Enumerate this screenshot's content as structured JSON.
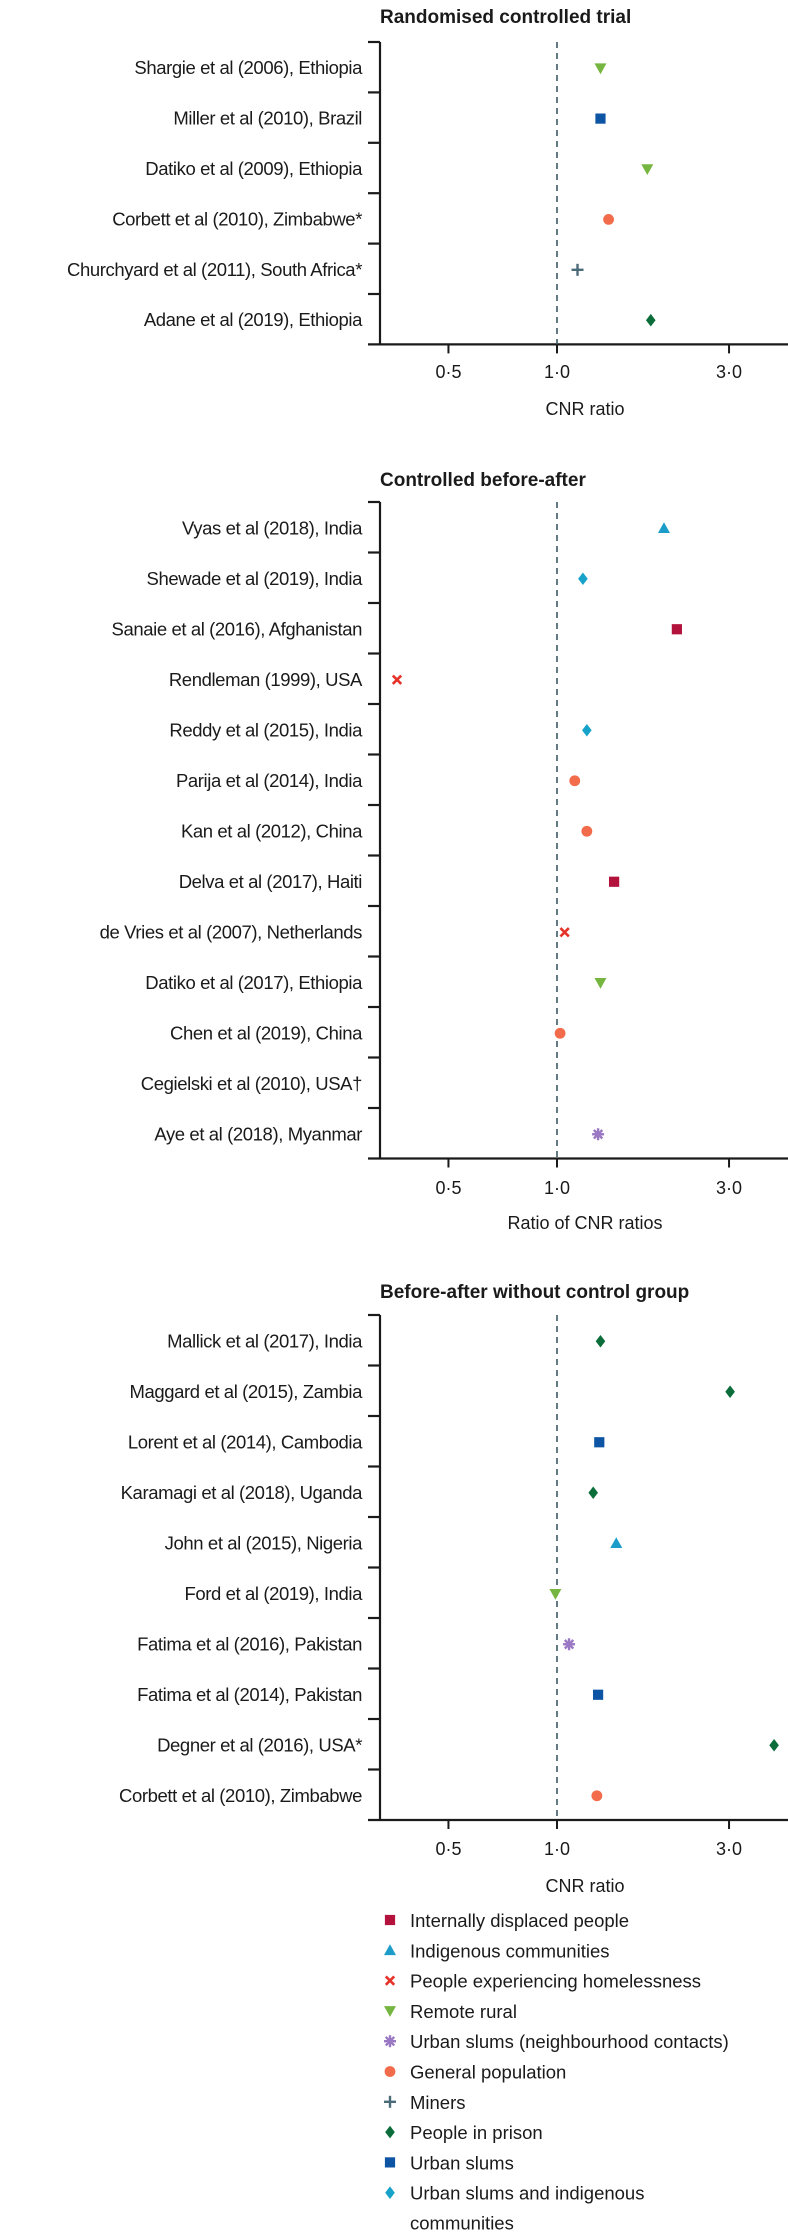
{
  "chart_data": [
    {
      "type": "scatter",
      "title": "Randomised controlled trial",
      "xlabel": "CNR ratio",
      "xscale": "log",
      "xticks": [
        {
          "value": 0.5,
          "label": "0·5"
        },
        {
          "value": 1.0,
          "label": "1·0"
        },
        {
          "value": 3.0,
          "label": "3·0"
        }
      ],
      "xlim": [
        0.32,
        4.4
      ],
      "reference_line": 1.0,
      "rows": [
        {
          "label": "Shargie et al (2006), Ethiopia",
          "value": 1.32,
          "group": "remote_rural"
        },
        {
          "label": "Miller et al (2010), Brazil",
          "value": 1.32,
          "group": "urban_slums"
        },
        {
          "label": "Datiko et al (2009), Ethiopia",
          "value": 1.78,
          "group": "remote_rural"
        },
        {
          "label": "Corbett et al (2010), Zimbabwe*",
          "value": 1.39,
          "group": "general_population"
        },
        {
          "label": "Churchyard et al (2011), South Africa*",
          "value": 1.14,
          "group": "miners"
        },
        {
          "label": "Adane et al (2019), Ethiopia",
          "value": 1.82,
          "group": "prison"
        }
      ]
    },
    {
      "type": "scatter",
      "title": "Controlled before-after",
      "xlabel": "Ratio of CNR ratios",
      "xscale": "log",
      "xticks": [
        {
          "value": 0.5,
          "label": "0·5"
        },
        {
          "value": 1.0,
          "label": "1·0"
        },
        {
          "value": 3.0,
          "label": "3·0"
        }
      ],
      "xlim": [
        0.32,
        4.4
      ],
      "reference_line": 1.0,
      "rows": [
        {
          "label": "Vyas et al (2018), India",
          "value": 1.98,
          "group": "indigenous"
        },
        {
          "label": "Shewade et al (2019), India",
          "value": 1.18,
          "group": "urban_slums_indigenous"
        },
        {
          "label": "Sanaie et al (2016), Afghanistan",
          "value": 2.15,
          "group": "idp"
        },
        {
          "label": "Rendleman (1999), USA",
          "value": 0.36,
          "group": "homelessness"
        },
        {
          "label": "Reddy et al (2015), India",
          "value": 1.21,
          "group": "urban_slums_indigenous"
        },
        {
          "label": "Parija et al (2014), India",
          "value": 1.12,
          "group": "general_population"
        },
        {
          "label": "Kan et al (2012), China",
          "value": 1.21,
          "group": "general_population"
        },
        {
          "label": "Delva et al (2017), Haiti",
          "value": 1.44,
          "group": "idp"
        },
        {
          "label": "de Vries et al (2007), Netherlands",
          "value": 1.05,
          "group": "homelessness"
        },
        {
          "label": "Datiko et al (2017), Ethiopia",
          "value": 1.32,
          "group": "remote_rural"
        },
        {
          "label": "Chen et al (2019), China",
          "value": 1.02,
          "group": "general_population"
        },
        {
          "label": "Cegielski et al (2010), USA†",
          "value": null,
          "group": null
        },
        {
          "label": "Aye et al (2018), Myanmar",
          "value": 1.3,
          "group": "urban_slums_neighbourhood"
        }
      ]
    },
    {
      "type": "scatter",
      "title": "Before-after without control group",
      "xlabel": "CNR ratio",
      "xscale": "log",
      "xticks": [
        {
          "value": 0.5,
          "label": "0·5"
        },
        {
          "value": 1.0,
          "label": "1·0"
        },
        {
          "value": 3.0,
          "label": "3·0"
        }
      ],
      "xlim": [
        0.32,
        4.4
      ],
      "reference_line": 1.0,
      "rows": [
        {
          "label": "Mallick et al (2017), India",
          "value": 1.32,
          "group": "prison"
        },
        {
          "label": "Maggard et al (2015), Zambia",
          "value": 3.02,
          "group": "prison"
        },
        {
          "label": "Lorent et al (2014), Cambodia",
          "value": 1.31,
          "group": "urban_slums"
        },
        {
          "label": "Karamagi et al (2018), Uganda",
          "value": 1.26,
          "group": "prison"
        },
        {
          "label": "John et al (2015), Nigeria",
          "value": 1.46,
          "group": "indigenous"
        },
        {
          "label": "Ford et al (2019), India",
          "value": 0.99,
          "group": "remote_rural"
        },
        {
          "label": "Fatima et al (2016), Pakistan",
          "value": 1.08,
          "group": "urban_slums_neighbourhood"
        },
        {
          "label": "Fatima et al (2014), Pakistan",
          "value": 1.3,
          "group": "urban_slums"
        },
        {
          "label": "Degner et al (2016), USA*",
          "value": 4.0,
          "group": "prison"
        },
        {
          "label": "Corbett et al (2010), Zimbabwe",
          "value": 1.29,
          "group": "general_population"
        }
      ]
    }
  ],
  "legend": [
    {
      "key": "idp",
      "label": "Internally displaced people",
      "shape": "square",
      "color": "#b3123d"
    },
    {
      "key": "indigenous",
      "label": "Indigenous communities",
      "shape": "triangle-up",
      "color": "#1b9cc9"
    },
    {
      "key": "homelessness",
      "label": "People experiencing homelessness",
      "shape": "cross-x",
      "color": "#e53329"
    },
    {
      "key": "remote_rural",
      "label": "Remote rural",
      "shape": "triangle-down",
      "color": "#76b640"
    },
    {
      "key": "urban_slums_neighbourhood",
      "label": "Urban slums (neighbourhood contacts)",
      "shape": "asterisk",
      "color": "#9a78c4"
    },
    {
      "key": "general_population",
      "label": "General population",
      "shape": "circle",
      "color": "#f26b4a"
    },
    {
      "key": "miners",
      "label": "Miners",
      "shape": "plus",
      "color": "#4b6b79"
    },
    {
      "key": "prison",
      "label": "People in prison",
      "shape": "diamond",
      "color": "#0b6d3a"
    },
    {
      "key": "urban_slums",
      "label": "Urban slums",
      "shape": "square",
      "color": "#0e54a4"
    },
    {
      "key": "urban_slums_indigenous",
      "label": "Urban slums and indigenous communities",
      "label_lines": [
        "Urban slums and indigenous",
        "communities"
      ],
      "shape": "diamond",
      "color": "#17a3c9"
    }
  ],
  "colors": {
    "axis": "#1a1a1a",
    "reference_line": "#3d5a66"
  }
}
